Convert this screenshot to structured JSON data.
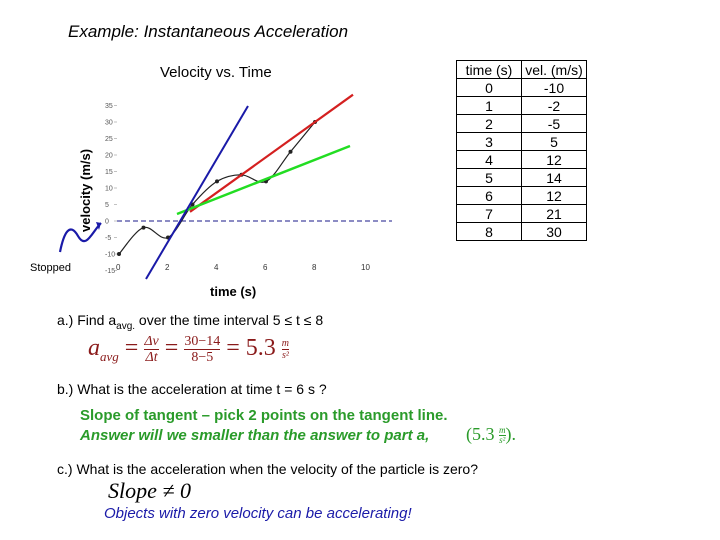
{
  "title": "Example:  Instantaneous Acceleration",
  "chart": {
    "title": "Velocity vs. Time",
    "ylabel": "velocity (m/s)",
    "xlabel": "time (s)",
    "annotation": "Stopped",
    "y_ticks": [
      "35",
      "30",
      "25",
      "20",
      "15",
      "10",
      "5",
      "0",
      "-5",
      "-10",
      "-15"
    ],
    "x_ticks": [
      "0",
      "2",
      "4",
      "6",
      "8",
      "10"
    ]
  },
  "chart_data": {
    "type": "line",
    "x": [
      0,
      1,
      2,
      3,
      4,
      5,
      6,
      7,
      8
    ],
    "series": [
      {
        "values": [
          -10,
          -2,
          -5,
          5,
          12,
          14,
          12,
          21,
          30
        ]
      }
    ],
    "xlim": [
      0,
      10
    ],
    "ylim": [
      -15,
      35
    ]
  },
  "table": {
    "headers": [
      "time (s)",
      "vel. (m/s)"
    ],
    "rows": [
      [
        "0",
        "-10"
      ],
      [
        "1",
        "-2"
      ],
      [
        "2",
        "-5"
      ],
      [
        "3",
        "5"
      ],
      [
        "4",
        "12"
      ],
      [
        "5",
        "14"
      ],
      [
        "6",
        "12"
      ],
      [
        "7",
        "21"
      ],
      [
        "8",
        "30"
      ]
    ]
  },
  "qa": {
    "text_prefix": "a.)  Find a",
    "text_sub": "avg.",
    "text_suffix": " over the time interval 5 ≤ t ≤ 8",
    "formula_lhs": "a",
    "formula_lhs_sub": "avg",
    "formula_frac1_num": "Δv",
    "formula_frac1_den": "Δt",
    "formula_frac2_num": "30−14",
    "formula_frac2_den": "8−5",
    "formula_result": "5.3",
    "formula_unit_num": "m",
    "formula_unit_den": "s²"
  },
  "qb": {
    "text": "b.)  What is the acceleration at time t = 6 s ?",
    "line1": "Slope of tangent – pick 2 points on the tangent line.",
    "line2": "Answer will we smaller than the answer to part a,",
    "ans_open": "(5.3",
    "ans_unit_num": "m",
    "ans_unit_den": "s²",
    "ans_close": ")."
  },
  "qc": {
    "text": "c.)  What is the acceleration when the velocity of the particle is zero?",
    "slope": "Slope ≠ 0",
    "note": "Objects with zero velocity can be accelerating!"
  }
}
